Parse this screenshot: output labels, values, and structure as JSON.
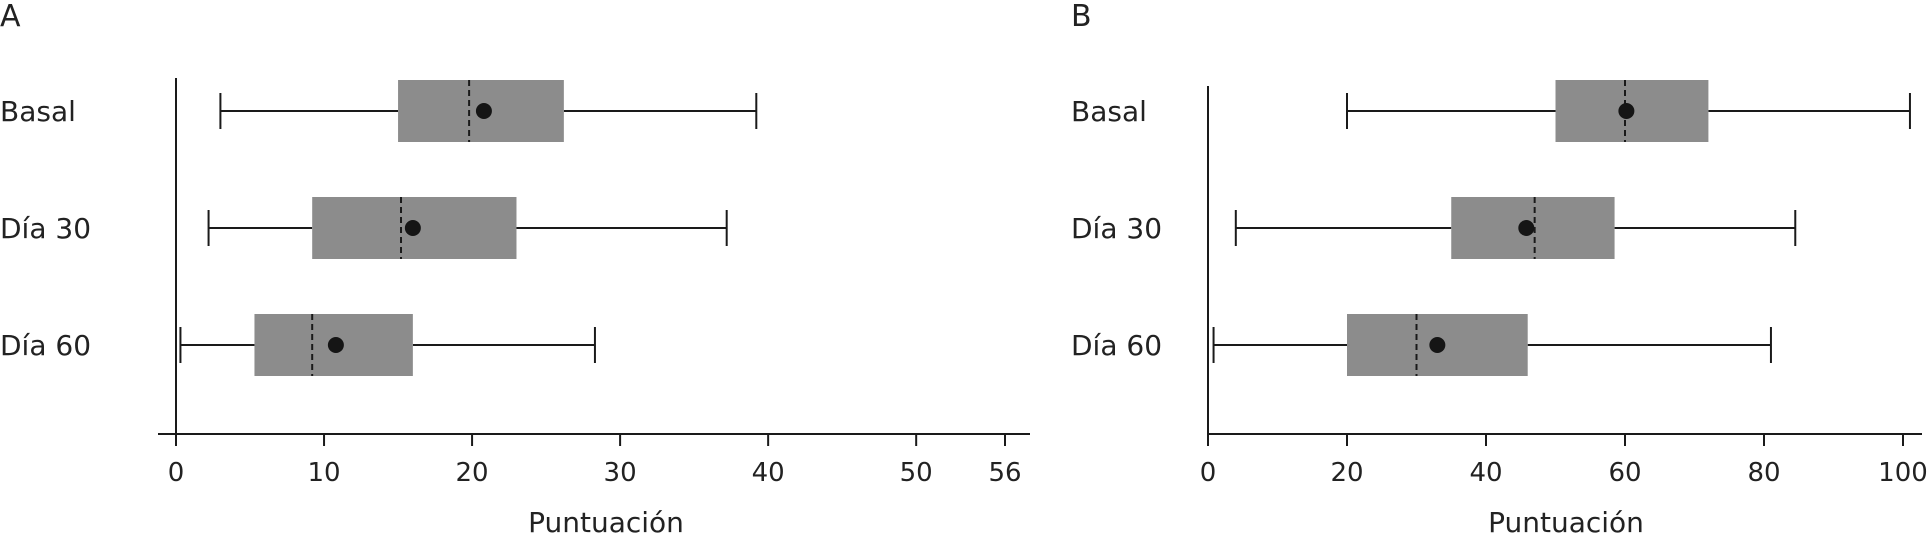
{
  "chart_data": [
    {
      "type": "boxplot",
      "panel_label": "A",
      "orientation": "horizontal",
      "categories": [
        "Basal",
        "Día 30",
        "Día 60"
      ],
      "xlabel": "Puntuación",
      "ylabel": "",
      "xlim": [
        0,
        56
      ],
      "xticks": [
        0,
        10,
        20,
        30,
        40,
        50,
        56
      ],
      "boxes": [
        {
          "category": "Basal",
          "whisker_low": 3.0,
          "q1": 15.0,
          "median": 19.8,
          "q3": 26.2,
          "whisker_high": 39.2,
          "mean": 20.8
        },
        {
          "category": "Día 30",
          "whisker_low": 2.2,
          "q1": 9.2,
          "median": 15.2,
          "q3": 23.0,
          "whisker_high": 37.2,
          "mean": 16.0
        },
        {
          "category": "Día 60",
          "whisker_low": 0.3,
          "q1": 5.3,
          "median": 9.2,
          "q3": 16.0,
          "whisker_high": 28.3,
          "mean": 10.8
        }
      ],
      "legend": "none",
      "grid": false
    },
    {
      "type": "boxplot",
      "panel_label": "B",
      "orientation": "horizontal",
      "categories": [
        "Basal",
        "Día 30",
        "Día 60"
      ],
      "xlabel": "Puntuación",
      "ylabel": "",
      "xlim": [
        0,
        100
      ],
      "xticks": [
        0,
        20,
        40,
        60,
        80,
        100
      ],
      "boxes": [
        {
          "category": "Basal",
          "whisker_low": 20.0,
          "q1": 50.0,
          "median": 60.0,
          "q3": 72.0,
          "whisker_high": 101.0,
          "mean": 60.2
        },
        {
          "category": "Día 30",
          "whisker_low": 4.0,
          "q1": 35.0,
          "median": 47.0,
          "q3": 58.5,
          "whisker_high": 84.5,
          "mean": 45.8
        },
        {
          "category": "Día 60",
          "whisker_low": 0.8,
          "q1": 20.0,
          "median": 30.0,
          "q3": 46.0,
          "whisker_high": 81.0,
          "mean": 33.0
        }
      ],
      "legend": "none",
      "grid": false
    }
  ],
  "colors": {
    "box_fill": "#8c8c8c",
    "line": "#1a1a1a",
    "mean_marker": "#151515"
  }
}
